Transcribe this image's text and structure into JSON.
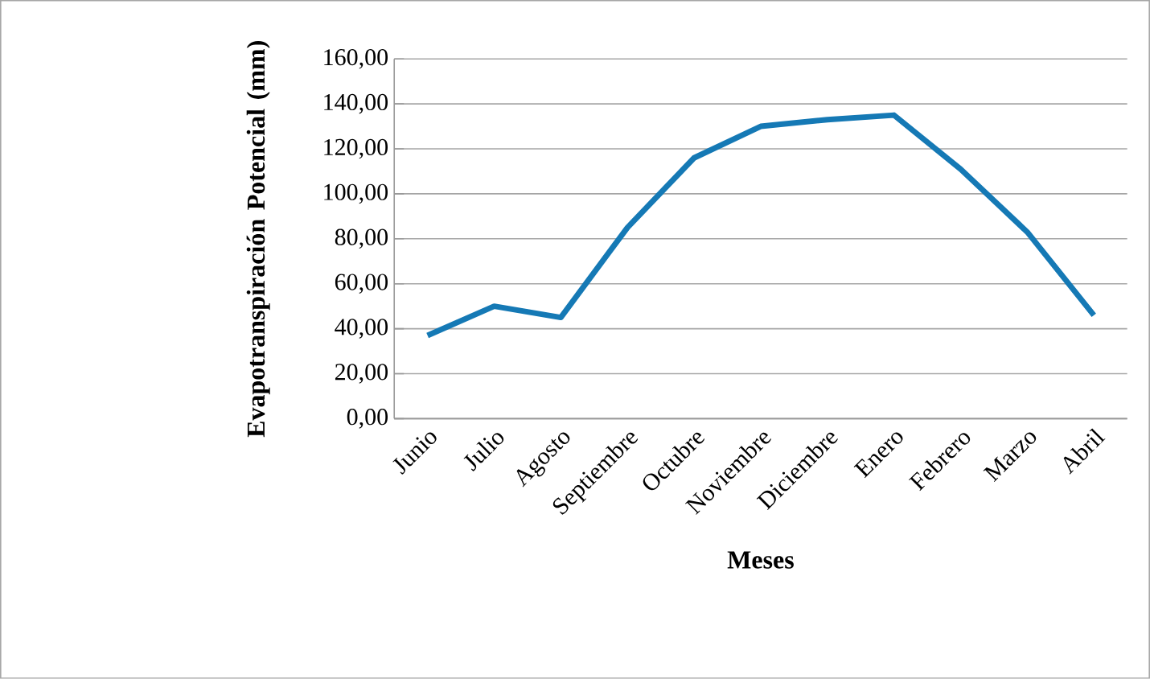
{
  "chart_data": {
    "type": "line",
    "xlabel": "Meses",
    "ylabel": "Evapotranspiración Potencial (mm)",
    "categories": [
      "Junio",
      "Julio",
      "Agosto",
      "Septiembre",
      "Octubre",
      "Noviembre",
      "Diciembre",
      "Enero",
      "Febrero",
      "Marzo",
      "Abril"
    ],
    "series": [
      {
        "color": "#1579b5",
        "values": [
          37,
          50,
          45,
          85,
          116,
          130,
          133,
          135,
          111,
          83,
          46
        ]
      }
    ],
    "ylim": [
      0,
      160
    ],
    "yticks": [
      {
        "value": 0,
        "label": "0,00"
      },
      {
        "value": 20,
        "label": "20,00"
      },
      {
        "value": 40,
        "label": "40,00"
      },
      {
        "value": 60,
        "label": "60,00"
      },
      {
        "value": 80,
        "label": "80,00"
      },
      {
        "value": 100,
        "label": "100,00"
      },
      {
        "value": 120,
        "label": "120,00"
      },
      {
        "value": 140,
        "label": "140,00"
      },
      {
        "value": 160,
        "label": "160,00"
      }
    ],
    "grid": "y",
    "marker": "none",
    "line_style": "solid"
  }
}
